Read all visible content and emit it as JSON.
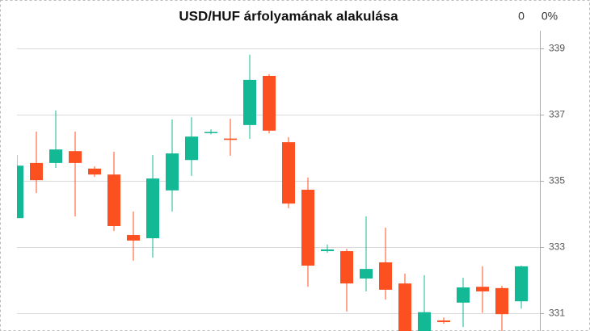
{
  "chart_data": {
    "type": "candlestick",
    "title": "USD/HUF árfolyamának alakulása",
    "annotations": [
      "0",
      "0%"
    ],
    "categories": [
      null,
      null,
      null,
      null,
      null,
      null,
      null,
      null,
      null,
      null,
      null,
      null,
      null,
      null,
      null,
      null,
      null,
      null,
      null,
      null,
      null,
      null,
      null,
      null,
      null,
      null,
      null
    ],
    "open": [
      333.87,
      335.54,
      335.54,
      335.9,
      335.37,
      335.19,
      333.36,
      333.26,
      334.71,
      335.63,
      336.47,
      336.28,
      336.69,
      338.18,
      336.17,
      334.73,
      332.87,
      332.87,
      332.04,
      332.53,
      331.89,
      330.4,
      330.77,
      331.31,
      331.79,
      331.75,
      331.35
    ],
    "high": [
      335.78,
      336.49,
      337.13,
      336.49,
      335.44,
      335.88,
      334.07,
      335.78,
      336.86,
      336.93,
      336.56,
      336.88,
      338.82,
      338.23,
      336.32,
      335.1,
      333.07,
      332.94,
      333.92,
      333.58,
      332.19,
      332.14,
      330.86,
      332.06,
      332.41,
      331.82,
      332.43
    ],
    "low": [
      333.87,
      334.63,
      335.39,
      333.92,
      335.12,
      333.48,
      332.58,
      332.67,
      334.07,
      335.15,
      336.41,
      335.76,
      336.27,
      336.44,
      334.17,
      331.79,
      332.82,
      331.04,
      331.65,
      331.4,
      330.2,
      330.3,
      330.67,
      330.57,
      331.0,
      330.45,
      331.13
    ],
    "close": [
      335.46,
      335.02,
      335.95,
      335.54,
      335.19,
      333.63,
      333.19,
      335.07,
      335.83,
      336.34,
      336.48,
      336.24,
      338.06,
      336.52,
      334.31,
      332.43,
      332.92,
      331.89,
      332.33,
      331.7,
      330.3,
      331.02,
      330.72,
      331.77,
      331.65,
      330.96,
      332.41
    ],
    "up_color": "#13b894",
    "down_color": "#fd5021",
    "ylim": [
      330.45,
      339.5
    ],
    "yticks": [
      331,
      333,
      335,
      337,
      339
    ],
    "y_axis_side": "right",
    "grid": true
  }
}
